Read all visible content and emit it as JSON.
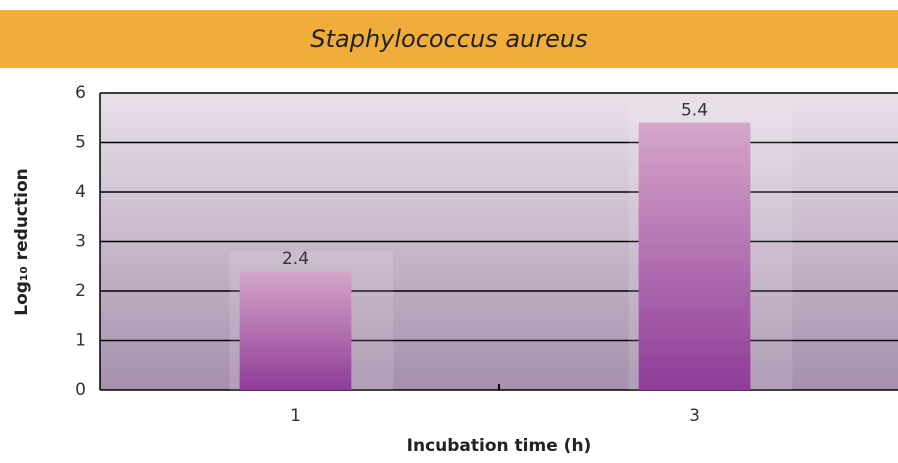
{
  "chart_data": {
    "type": "bar",
    "title": "Staphylococcus aureus",
    "x_label": "Incubation time (h)",
    "y_label": "Log₁₀ reduction",
    "categories": [
      "1",
      "3"
    ],
    "values": [
      2.4,
      5.4
    ],
    "color": "#8e3c98",
    "ylim": [
      0,
      6
    ],
    "yticks": [
      0,
      1,
      2,
      3,
      4,
      5,
      6
    ],
    "grid": true
  }
}
